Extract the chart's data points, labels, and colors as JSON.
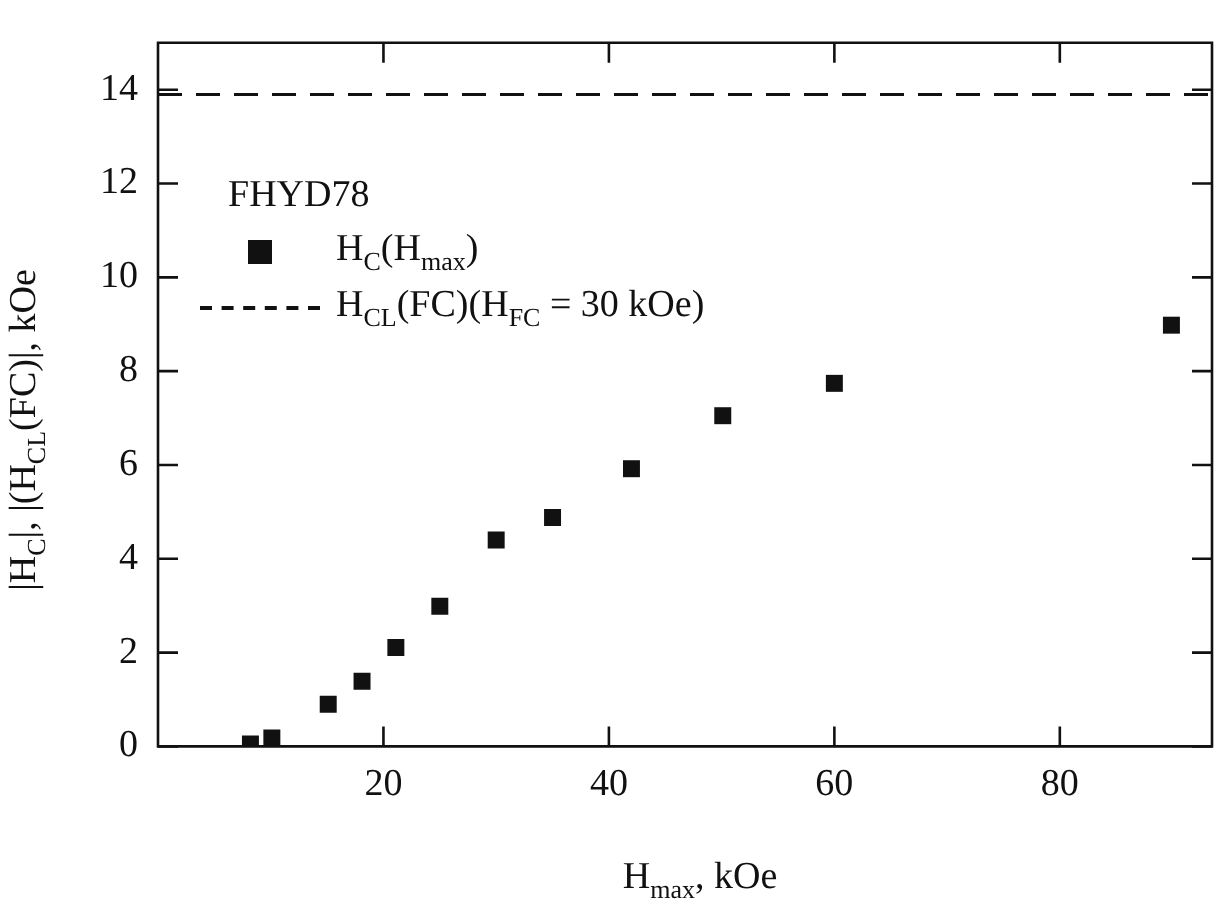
{
  "chart_data": {
    "type": "scatter",
    "xlabel": "H$_{max}$, kOe",
    "ylabel": "|H$_{C}$|, |(H$_{CL}$(FC)|, kOe",
    "legend_title": "FHYD78",
    "x": [
      8.2,
      10.1,
      15.1,
      18.1,
      21.1,
      25,
      30,
      35,
      42,
      50.1,
      60,
      89.9
    ],
    "series": [
      {
        "name": "H$_{C}$(H$_{max}$)",
        "color": "#111111",
        "marker": "square",
        "values": [
          0.05,
          0.18,
          0.9,
          1.39,
          2.11,
          2.99,
          4.4,
          4.88,
          5.92,
          7.05,
          7.74,
          8.98
        ]
      },
      {
        "name": "H$_{CL}$(FC)(H$_{FC}$ = 30 kOe)",
        "type": "line",
        "line_style": "dashed",
        "marker": "none",
        "color": "#111111",
        "x": [
          0,
          93.5
        ],
        "values": [
          13.9,
          13.9
        ]
      }
    ],
    "xlim": [
      0,
      93.5
    ],
    "ylim": [
      0,
      15
    ],
    "xticks": [
      20,
      40,
      60,
      80
    ],
    "yticks": [
      0,
      2,
      4,
      6,
      8,
      10,
      12,
      14
    ],
    "legend": "top left"
  }
}
